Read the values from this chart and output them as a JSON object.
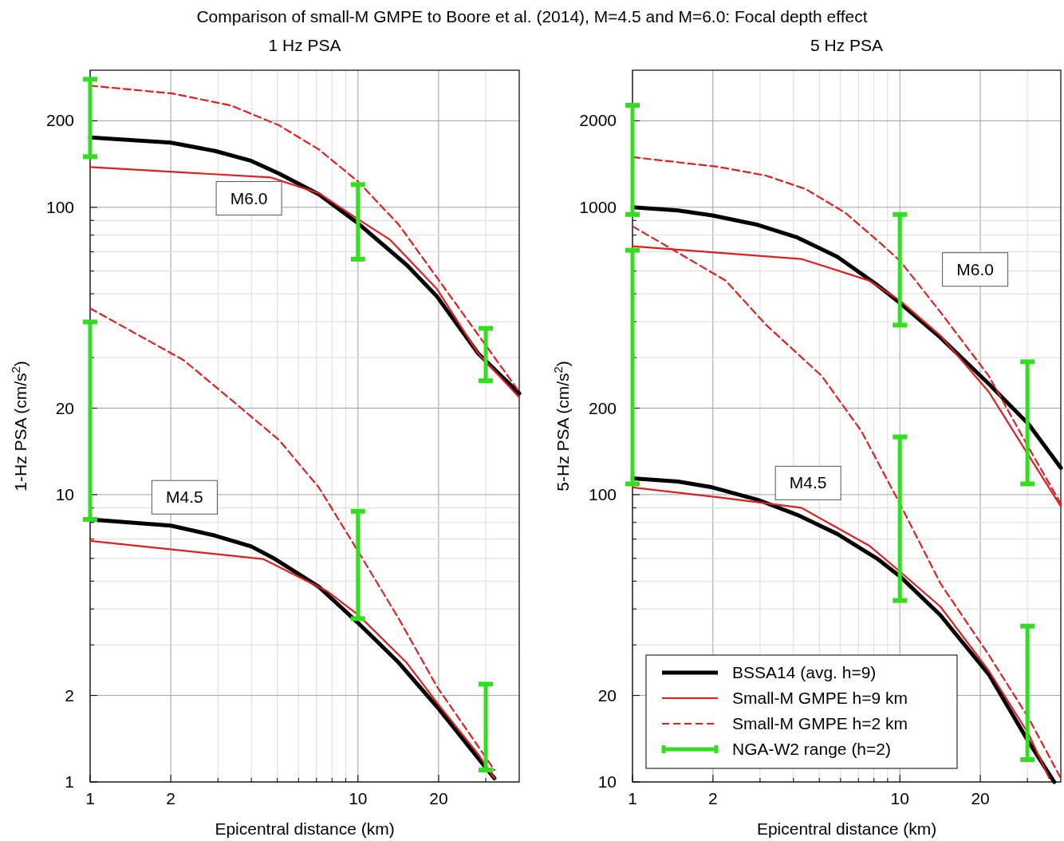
{
  "chart_data": [
    {
      "type": "line",
      "title": "Comparison of small-M GMPE to Boore et al. (2014), M=4.5 and M=6.0: Focal depth effect",
      "subtitle": "1 Hz PSA",
      "xlabel": "Epicentral distance (km)",
      "ylabel": "1-Hz PSA (cm/s$^{2}$)",
      "log": "xy",
      "grid": true,
      "legend": false,
      "xlim": [
        1,
        40
      ],
      "xticks": [
        1,
        2,
        {
          "value": 3,
          "label": null
        },
        {
          "value": 4,
          "label": null
        },
        {
          "value": 5,
          "label": null
        },
        {
          "value": 6,
          "label": null
        },
        {
          "value": 7,
          "label": null
        },
        {
          "value": 8,
          "label": null
        },
        {
          "value": 9,
          "label": null
        },
        10,
        20,
        {
          "value": 30,
          "label": null
        }
      ],
      "ylim": [
        1,
        300
      ],
      "yticks": [
        1,
        2,
        {
          "value": 3,
          "label": null
        },
        {
          "value": 4,
          "label": null
        },
        {
          "value": 5,
          "label": null
        },
        {
          "value": 6,
          "label": null
        },
        {
          "value": 7,
          "label": null
        },
        {
          "value": 8,
          "label": null
        },
        {
          "value": 9,
          "label": null
        },
        10,
        20,
        {
          "value": 30,
          "label": null
        },
        {
          "value": 40,
          "label": null
        },
        {
          "value": 50,
          "label": null
        },
        {
          "value": 60,
          "label": null
        },
        {
          "value": 70,
          "label": null
        },
        {
          "value": 80,
          "label": null
        },
        {
          "value": 90,
          "label": null
        },
        100,
        200
      ],
      "annotations": [
        "M6.0",
        "M4.5"
      ],
      "series": [
        {
          "color": "#000000",
          "x": [
            1,
            2,
            2.93,
            4,
            5.07,
            7.14,
            10,
            15.2,
            19.7,
            28.1,
            40,
            null,
            1,
            2,
            2.93,
            4,
            4.9,
            7.14,
            10,
            14.2,
            19.7,
            28.1,
            32.3
          ],
          "values": [
            175,
            168,
            157,
            145,
            131,
            111,
            88,
            63,
            49,
            31,
            22.5,
            null,
            8.2,
            7.8,
            7.2,
            6.6,
            5.97,
            4.78,
            3.58,
            2.6,
            1.83,
            1.21,
            1.03
          ]
        },
        {
          "color": "#e02020",
          "x": [
            1,
            4.73,
            7.14,
            10,
            13.2,
            19.7,
            28.1,
            40,
            null,
            1,
            4.42,
            7.65,
            10,
            15.2,
            19.7,
            28.1,
            32.3
          ],
          "values": [
            138,
            127,
            112,
            91,
            77,
            52,
            31,
            21.8,
            null,
            6.9,
            5.97,
            4.62,
            3.82,
            2.6,
            1.89,
            1.25,
            1.03
          ]
        },
        {
          "color": "#e02020",
          "line_style": "dashed",
          "x": [
            1,
            2.03,
            3.36,
            5.07,
            7.14,
            10,
            14.2,
            19.7,
            28.1,
            40,
            null,
            1,
            2.23,
            3.36,
            5.07,
            7.14,
            10,
            14.2,
            19.7,
            28.1,
            32.3
          ],
          "values": [
            265,
            249,
            226,
            193,
            159,
            123,
            87,
            57,
            36,
            22.8,
            null,
            44.5,
            29.4,
            21.4,
            15.5,
            10.6,
            6.36,
            3.7,
            2.15,
            1.33,
            1.1
          ]
        },
        {
          "type": "bar",
          "color": "#33dd22",
          "x": [
            1,
            10,
            30
          ],
          "base": [
            150,
            66,
            24.9
          ],
          "values": [
            129,
            54,
            13
          ]
        },
        {
          "type": "bar",
          "color": "#33dd22",
          "x": [
            1,
            10,
            30
          ],
          "base": [
            8.2,
            3.7,
            1.1
          ],
          "values": [
            31.7,
            5.05,
            1.09
          ]
        }
      ]
    },
    {
      "type": "line",
      "subtitle": "5 Hz PSA",
      "xlabel": "Epicentral distance (km)",
      "ylabel": "5-Hz PSA (cm/s$^{2}$)",
      "log": "xy",
      "grid": true,
      "legend": "bottom left",
      "xlim": [
        1,
        40
      ],
      "xticks": [
        1,
        2,
        {
          "value": 3,
          "label": null
        },
        {
          "value": 4,
          "label": null
        },
        {
          "value": 5,
          "label": null
        },
        {
          "value": 6,
          "label": null
        },
        {
          "value": 7,
          "label": null
        },
        {
          "value": 8,
          "label": null
        },
        {
          "value": 9,
          "label": null
        },
        10,
        20,
        {
          "value": 30,
          "label": null
        }
      ],
      "ylim": [
        10,
        3000
      ],
      "yticks": [
        10,
        20,
        {
          "value": 30,
          "label": null
        },
        {
          "value": 40,
          "label": null
        },
        {
          "value": 50,
          "label": null
        },
        {
          "value": 60,
          "label": null
        },
        {
          "value": 70,
          "label": null
        },
        {
          "value": 80,
          "label": null
        },
        {
          "value": 90,
          "label": null
        },
        100,
        200,
        {
          "value": 300,
          "label": null
        },
        {
          "value": 400,
          "label": null
        },
        {
          "value": 500,
          "label": null
        },
        {
          "value": 600,
          "label": null
        },
        {
          "value": 700,
          "label": null
        },
        {
          "value": 800,
          "label": null
        },
        {
          "value": 900,
          "label": null
        },
        1000,
        2000
      ],
      "annotations": [
        "M6.0",
        "M4.5"
      ],
      "series": [
        {
          "name": "BSSA14 (avg. h=9)",
          "color": "#000000",
          "x": [
            1,
            1.48,
            1.99,
            2.94,
            4.14,
            5.83,
            8.2,
            10,
            14.2,
            21.5,
            30.3,
            40,
            null,
            1,
            1.48,
            1.99,
            2.94,
            4.14,
            5.83,
            8.2,
            10,
            14.2,
            21.5,
            30.3,
            37.8
          ],
          "values": [
            1000,
            975,
            937,
            869,
            785,
            673,
            538,
            465,
            352,
            243,
            176,
            124,
            null,
            114,
            111,
            106,
            96,
            85,
            73,
            60,
            52,
            38,
            23.7,
            13.8,
            10
          ]
        },
        {
          "name": "Small-M GMPE h=9 km",
          "color": "#e02020",
          "x": [
            1,
            4.28,
            7.67,
            10,
            14.2,
            21.5,
            30.3,
            40,
            null,
            1,
            2.08,
            4.28,
            7.67,
            10,
            14.2,
            21.5,
            30.3,
            36.2
          ],
          "values": [
            732,
            661,
            556,
            474,
            357,
            228,
            137,
            91,
            null,
            106,
            98,
            90,
            66.5,
            54,
            40.7,
            24.4,
            14.7,
            10.3
          ]
        },
        {
          "name": "Small-M GMPE h=2 km",
          "color": "#e02020",
          "line_style": "dashed",
          "x": [
            1,
            2.08,
            3.15,
            4.44,
            6.25,
            8.26,
            10,
            14.2,
            21.5,
            30.3,
            40,
            null,
            1,
            1.48,
            2.23,
            3.15,
            5.1,
            7.19,
            10,
            14.2,
            21.5,
            30.3,
            40
          ],
          "values": [
            1495,
            1384,
            1290,
            1158,
            957,
            765,
            652,
            431,
            259,
            146,
            93,
            null,
            859,
            695,
            556,
            391,
            259,
            166,
            93,
            49,
            27.7,
            16.7,
            10.3
          ]
        },
        {
          "type": "bar",
          "name": "NGA-W2 range (h=2)",
          "color": "#33dd22",
          "x": [
            1,
            10,
            30
          ],
          "base": [
            944,
            389,
            109
          ],
          "values": [
            1320,
            555,
            181
          ]
        },
        {
          "type": "bar",
          "color": "#33dd22",
          "x": [
            1,
            10,
            30
          ],
          "base": [
            109,
            42.8,
            11.96
          ],
          "values": [
            600,
            116,
            22.9
          ]
        }
      ]
    }
  ]
}
